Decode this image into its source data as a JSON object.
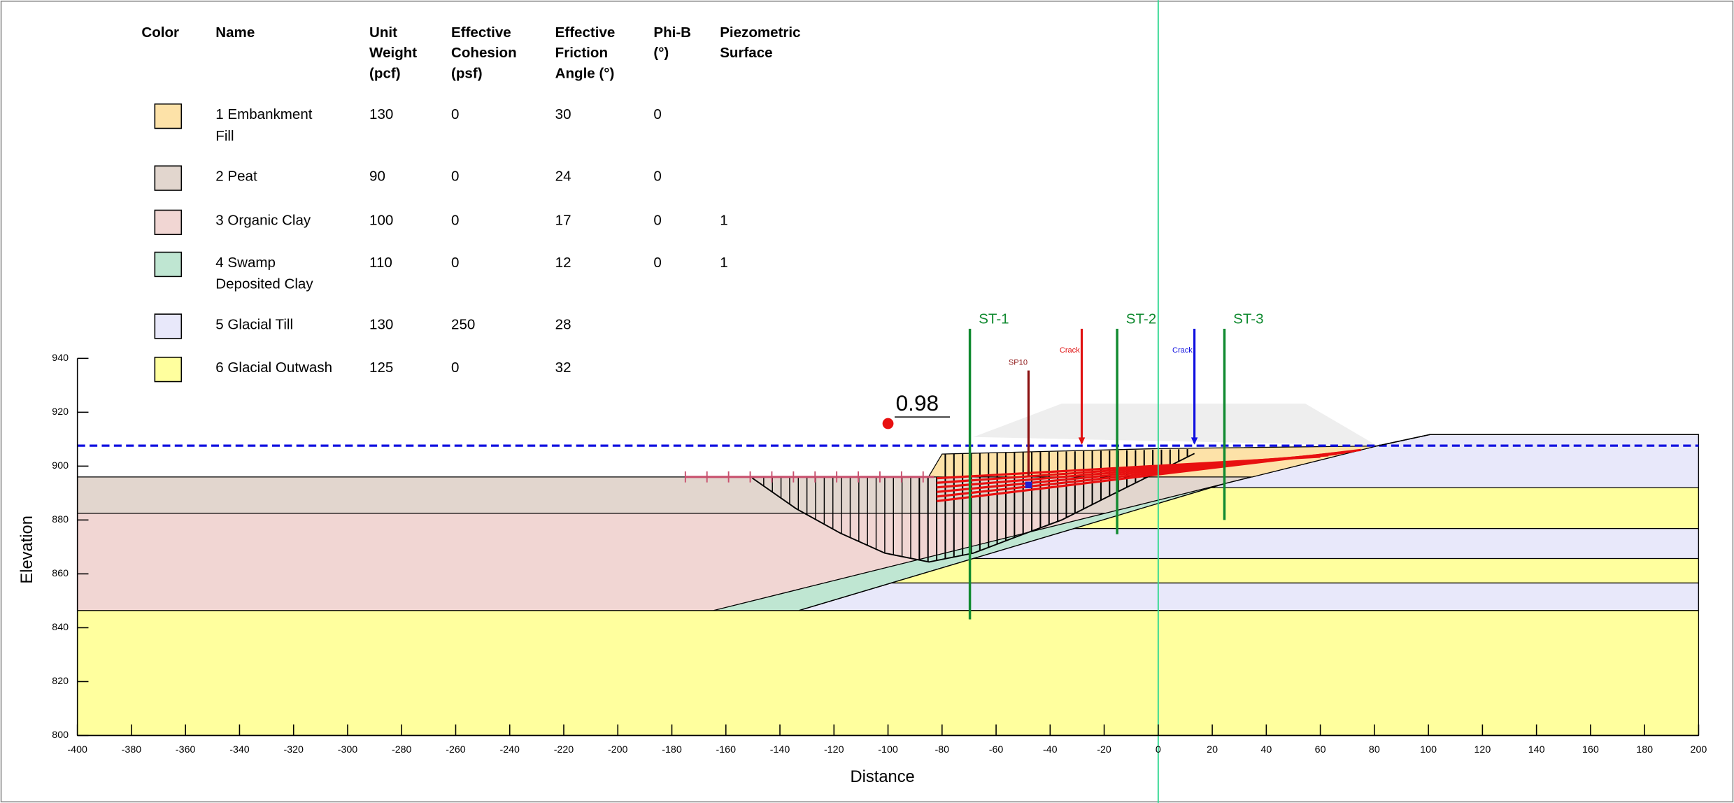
{
  "chart_data": {
    "type": "cross-section",
    "xlabel": "Distance",
    "ylabel": "Elevation",
    "xlim": [
      -400,
      200
    ],
    "ylim": [
      800,
      940
    ],
    "xticks": [
      -400,
      -380,
      -360,
      -340,
      -320,
      -300,
      -280,
      -260,
      -240,
      -220,
      -200,
      -180,
      -160,
      -140,
      -120,
      -100,
      -80,
      -60,
      -40,
      -20,
      0,
      20,
      40,
      60,
      80,
      100,
      120,
      140,
      160,
      180,
      200
    ],
    "yticks": [
      800,
      820,
      840,
      860,
      880,
      900,
      920,
      940
    ],
    "factor_of_safety": 0.98,
    "annotations": {
      "st1": "ST-1",
      "st2": "ST-2",
      "st3": "ST-3",
      "sp10": "SP10",
      "crack_red": "Crack",
      "crack_blue": "Crack"
    },
    "materials_table": {
      "headers": [
        [
          "Color"
        ],
        [
          "Name"
        ],
        [
          "Unit",
          "Weight",
          "(pcf)"
        ],
        [
          "Effective",
          "Cohesion",
          "(psf)"
        ],
        [
          "Effective",
          "Friction",
          "Angle (°)"
        ],
        [
          "Phi-B",
          "(°)"
        ],
        [
          "Piezometric",
          "Surface"
        ]
      ],
      "rows": [
        {
          "color": "#fde2a8",
          "name": [
            "1 Embankment",
            "Fill"
          ],
          "unit_weight": 130,
          "cohesion": 0,
          "friction": 30,
          "phi_b": 0,
          "piezometric": null
        },
        {
          "color": "#e2d6ce",
          "name": [
            "2 Peat"
          ],
          "unit_weight": 90,
          "cohesion": 0,
          "friction": 24,
          "phi_b": 0,
          "piezometric": null
        },
        {
          "color": "#f1d6d3",
          "name": [
            "3 Organic Clay"
          ],
          "unit_weight": 100,
          "cohesion": 0,
          "friction": 17,
          "phi_b": 0,
          "piezometric": 1
        },
        {
          "color": "#bfe6d2",
          "name": [
            "4 Swamp",
            "Deposited Clay"
          ],
          "unit_weight": 110,
          "cohesion": 0,
          "friction": 12,
          "phi_b": 0,
          "piezometric": 1
        },
        {
          "color": "#e8e8fa",
          "name": [
            "5 Glacial Till"
          ],
          "unit_weight": 130,
          "cohesion": 250,
          "friction": 28,
          "phi_b": null,
          "piezometric": null
        },
        {
          "color": "#ffff9e",
          "name": [
            "6 Glacial Outwash"
          ],
          "unit_weight": 125,
          "cohesion": 0,
          "friction": 32,
          "phi_b": null,
          "piezometric": null
        }
      ]
    }
  }
}
